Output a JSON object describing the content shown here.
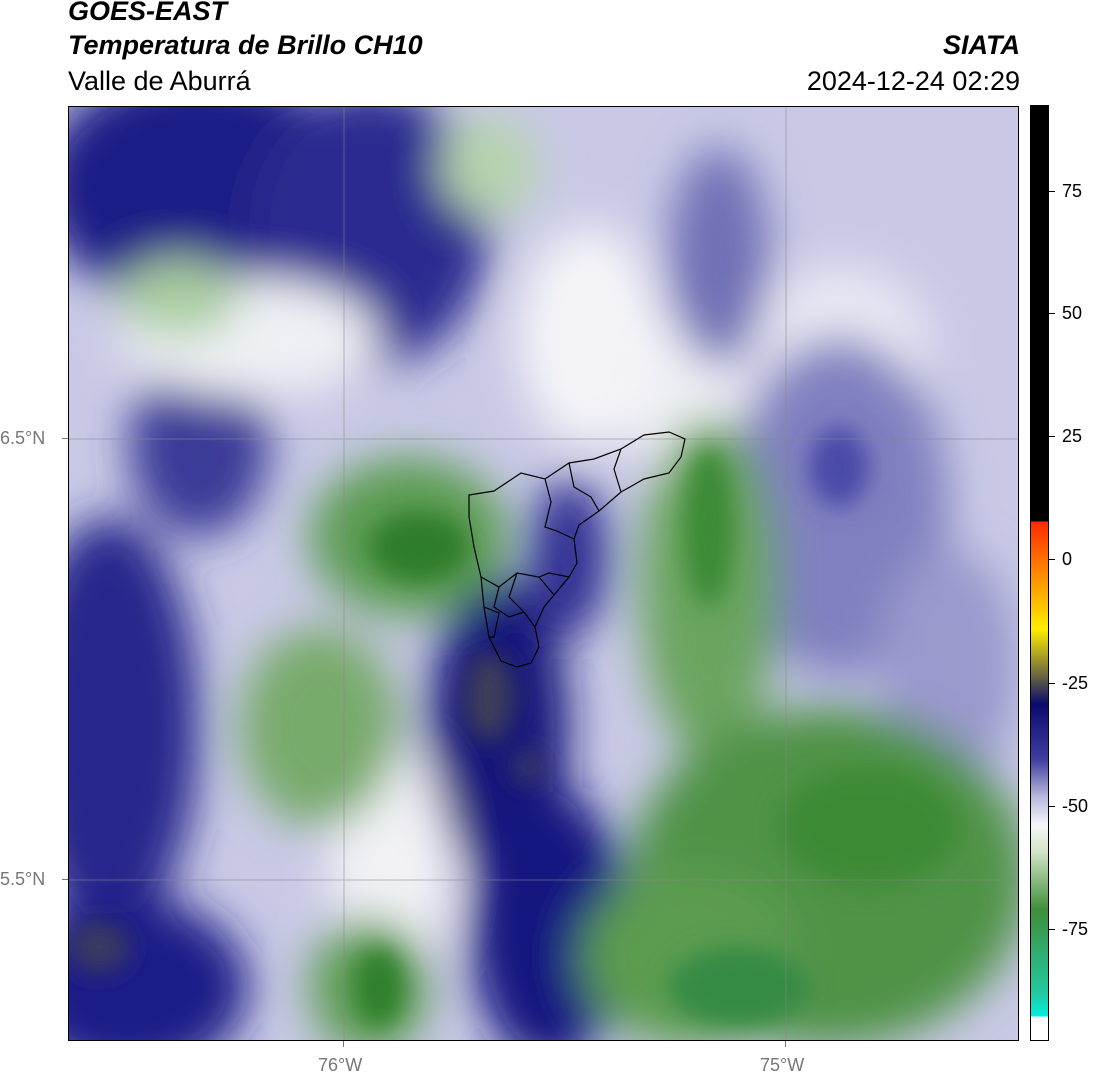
{
  "header": {
    "satellite": "GOES-EAST",
    "product": "Temperatura de Brillo CH10",
    "region": "Valle de Aburrá",
    "agency": "SIATA",
    "datetime": "2024-12-24 02:29"
  },
  "axes": {
    "lat_labels": [
      "6.5°N",
      "5.5°N"
    ],
    "lon_labels": [
      "76°W",
      "75°W"
    ]
  },
  "colorbar": {
    "tick_labels": [
      "75",
      "50",
      "25",
      "0",
      "-25",
      "-50",
      "-75"
    ],
    "colors": {
      "warm_black": "#000000",
      "red": "#ff2a00",
      "orange": "#ff9900",
      "yellow": "#ffee00",
      "olive": "#6b6640",
      "navy": "#0a0a6e",
      "blue": "#3f3fa0",
      "lavender": "#b9b9dd",
      "white": "#f6f6f8",
      "light_green": "#cfe3c5",
      "green": "#3f8f3a",
      "teal": "#22c9a0",
      "cyan": "#00f0e6"
    }
  }
}
